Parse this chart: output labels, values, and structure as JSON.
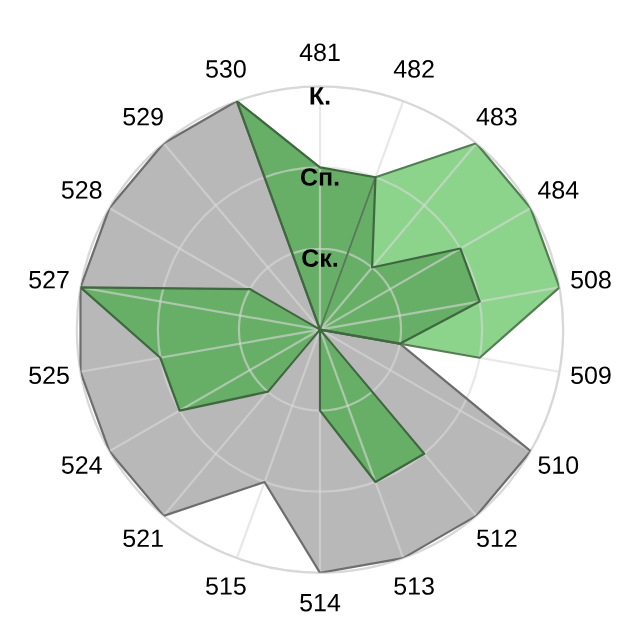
{
  "chart_data": {
    "type": "radar",
    "categories": [
      "481",
      "482",
      "483",
      "484",
      "508",
      "509",
      "510",
      "512",
      "513",
      "514",
      "515",
      "521",
      "524",
      "525",
      "527",
      "528",
      "529",
      "530"
    ],
    "series": [
      {
        "color": "#b8b8b8",
        "values": [
          0,
          0,
          0,
          0,
          0,
          1,
          3,
          3,
          3,
          3,
          2,
          3,
          3,
          3,
          3,
          3,
          3,
          3
        ]
      },
      {
        "color": "#8cd48c",
        "values": [
          0,
          2,
          3,
          3,
          3,
          2,
          0,
          0,
          0,
          0,
          0,
          0,
          0,
          0,
          0,
          0,
          0,
          0
        ]
      },
      {
        "color": "#67ae67",
        "values": [
          2,
          2,
          1,
          2,
          2,
          1,
          0,
          2,
          2,
          1,
          0,
          1,
          2,
          2,
          3,
          1,
          0,
          3
        ]
      }
    ],
    "ylim": [
      0,
      3
    ],
    "yticks": [
      {
        "value": 1,
        "label": "Ск."
      },
      {
        "value": 2,
        "label": "Сп."
      },
      {
        "value": 3,
        "label": "К."
      }
    ],
    "grid": true
  }
}
